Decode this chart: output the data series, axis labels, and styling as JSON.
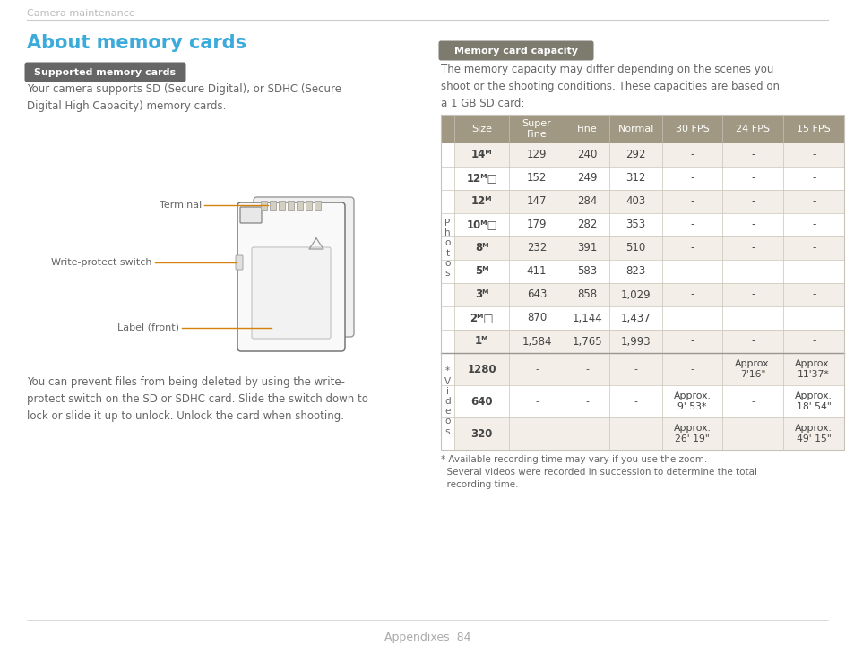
{
  "bg_color": "#ffffff",
  "page_title": "Camera maintenance",
  "section_title": "About memory cards",
  "section_title_color": "#3aabdb",
  "subsection1_label": "Supported memory cards",
  "subsection1_label_bg": "#666666",
  "subsection1_label_color": "#ffffff",
  "text1": "Your camera supports SD (Secure Digital), or SDHC (Secure\nDigital High Capacity) memory cards.",
  "text2": "You can prevent files from being deleted by using the write-\nprotect switch on the SD or SDHC card. Slide the switch down to\nlock or slide it up to unlock. Unlock the card when shooting.",
  "card_labels": [
    "Terminal",
    "Write-protect switch",
    "Label (front)"
  ],
  "arrow_color": "#d4820a",
  "subsection2_label": "Memory card capacity",
  "subsection2_label_bg": "#7d7b6e",
  "subsection2_label_color": "#ffffff",
  "text3": "The memory capacity may differ depending on the scenes you\nshoot or the shooting conditions. These capacities are based on\na 1 GB SD card:",
  "table_header_bg": "#a09882",
  "table_header_color": "#ffffff",
  "table_row_bg_even": "#f3efe8",
  "table_row_bg_odd": "#ffffff",
  "table_border_color": "#c8c3b8",
  "table_sep_color": "#999890",
  "table_text_color": "#444444",
  "table_headers": [
    "Size",
    "Super\nFine",
    "Fine",
    "Normal",
    "30 FPS",
    "24 FPS",
    "15 FPS"
  ],
  "photo_rows": [
    [
      "14ᴹ",
      "129",
      "240",
      "292",
      "-",
      "-",
      "-"
    ],
    [
      "12ᴹ□",
      "152",
      "249",
      "312",
      "-",
      "-",
      "-"
    ],
    [
      "12ᴹ",
      "147",
      "284",
      "403",
      "-",
      "-",
      "-"
    ],
    [
      "10ᴹ□",
      "179",
      "282",
      "353",
      "-",
      "-",
      "-"
    ],
    [
      "8ᴹ",
      "232",
      "391",
      "510",
      "-",
      "-",
      "-"
    ],
    [
      "5ᴹ",
      "411",
      "583",
      "823",
      "-",
      "-",
      "-"
    ],
    [
      "3ᴹ",
      "643",
      "858",
      "1,029",
      "-",
      "-",
      "-"
    ],
    [
      "2ᴹ□",
      "870",
      "1,144",
      "1,437",
      "",
      "",
      ""
    ],
    [
      "1ᴹ",
      "1,584",
      "1,765",
      "1,993",
      "-",
      "-",
      "-"
    ]
  ],
  "video_rows": [
    [
      "1280",
      "-",
      "-",
      "-",
      "-",
      "Approx.\n7'16\"",
      "Approx.\n11'37*"
    ],
    [
      "640",
      "-",
      "-",
      "-",
      "Approx.\n9' 53*",
      "-",
      "Approx.\n18' 54\""
    ],
    [
      "320",
      "-",
      "-",
      "-",
      "Approx.\n26' 19\"",
      "-",
      "Approx.\n49' 15\""
    ]
  ],
  "footnote": "* Available recording time may vary if you use the zoom.\n  Several videos were recorded in succession to determine the total\n  recording time.",
  "footer_text": "Appendixes  84",
  "text_color": "#666666",
  "line_color": "#cccccc",
  "top_rule_color": "#cccccc"
}
